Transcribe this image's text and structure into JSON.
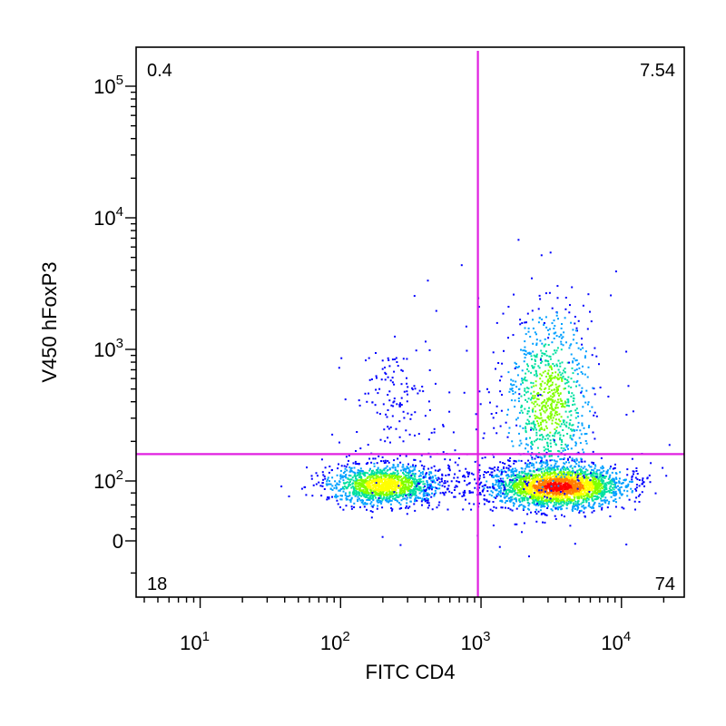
{
  "chart_data": {
    "type": "scatter",
    "xlabel": "FITC CD4",
    "ylabel": "V450 hFoxP3",
    "x_scale": "log",
    "y_scale": "biexponential",
    "xlim": [
      3.5,
      28000
    ],
    "ylim": [
      -35,
      250000
    ],
    "x_ticks": [
      {
        "value": 10,
        "base": "10",
        "exp": "1"
      },
      {
        "value": 100,
        "base": "10",
        "exp": "2"
      },
      {
        "value": 1000,
        "base": "10",
        "exp": "3"
      },
      {
        "value": 10000,
        "base": "10",
        "exp": "4"
      }
    ],
    "y_ticks": [
      {
        "value": 0,
        "base": "0",
        "exp": ""
      },
      {
        "value": 100,
        "base": "10",
        "exp": "2"
      },
      {
        "value": 1000,
        "base": "10",
        "exp": "3"
      },
      {
        "value": 10000,
        "base": "10",
        "exp": "4"
      },
      {
        "value": 100000,
        "base": "10",
        "exp": "5"
      }
    ],
    "gate_lines": {
      "x": 950,
      "y": 160,
      "color": "#e020e0"
    },
    "quadrants": {
      "upper_left": "0.4",
      "upper_right": "7.54",
      "lower_left": "18",
      "lower_right": "74"
    },
    "populations": [
      {
        "name": "",
        "x_center": 200,
        "y_center": 95,
        "density": "medium"
      },
      {
        "name": "",
        "x_center": 3500,
        "y_center": 90,
        "density": "high"
      },
      {
        "name": "",
        "x_center": 3000,
        "y_center": 350,
        "density": "low"
      }
    ],
    "density_colors": [
      "#0000ff",
      "#00a0ff",
      "#00e0a0",
      "#80ff00",
      "#ffff00",
      "#ff8000",
      "#ff0000"
    ],
    "grid": false,
    "legend": "none"
  }
}
